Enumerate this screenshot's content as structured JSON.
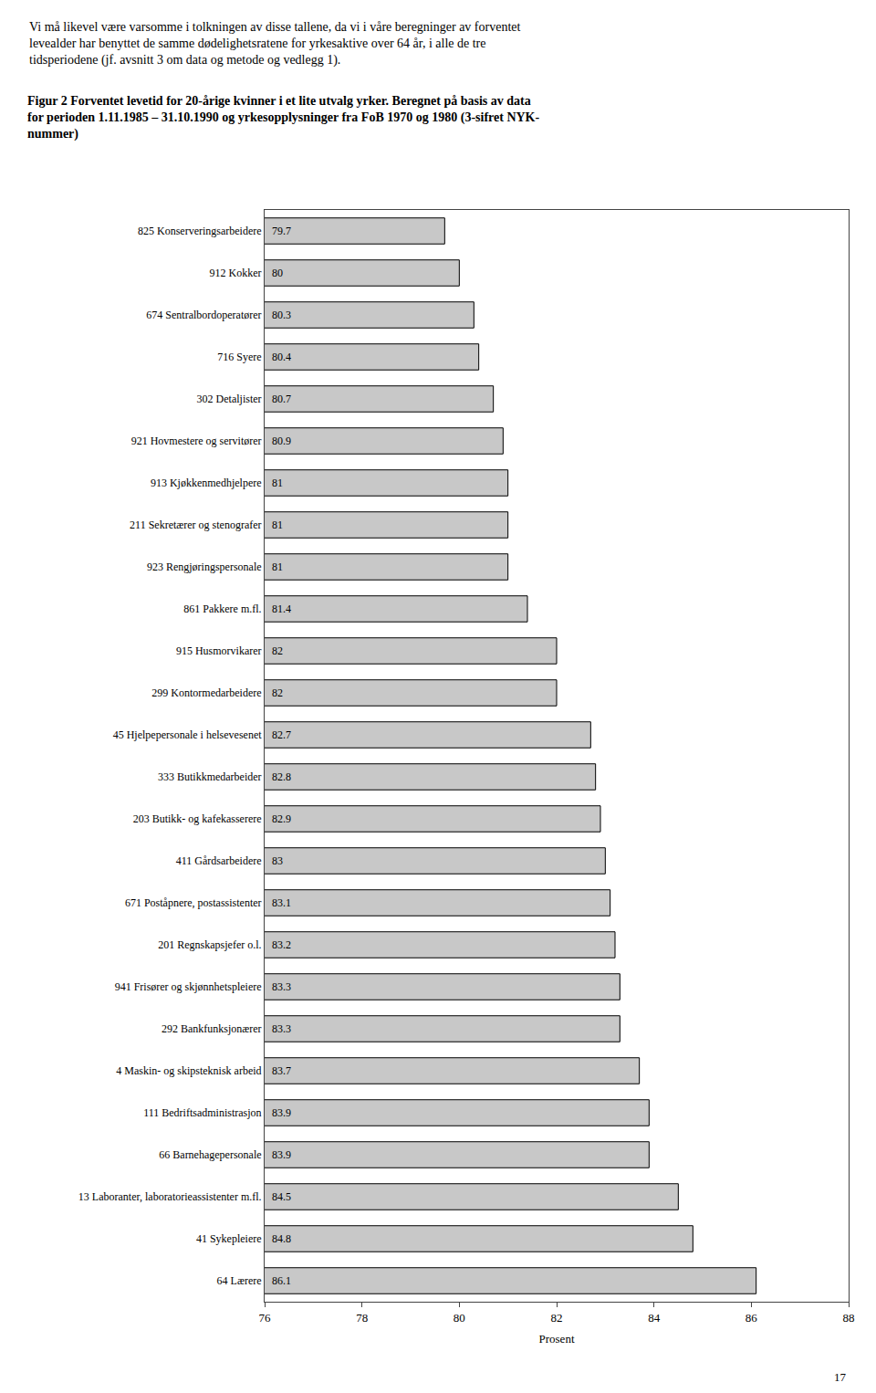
{
  "chart_data": {
    "type": "bar",
    "orientation": "horizontal",
    "title": "Figur 2 Forventet levetid for 20-årige kvinner i et lite utvalg yrker. Beregnet på basis av data\nfor perioden 1.11.1985 – 31.10.1990 og yrkesopplysninger fra FoB 1970 og 1980 (3-sifret NYK-\nnummer)",
    "annotations": [
      "Vi må likevel være varsomme i tolkningen av disse tallene, da vi i våre beregninger av forventet\nlevealder har benyttet de samme dødelighetsratene for yrkesaktive over 64 år, i alle de tre\ntidsperiodene (jf. avsnitt 3 om data og metode og vedlegg 1).",
      "17"
    ],
    "categories": [
      "825 Konserveringsarbeidere",
      "912 Kokker",
      "674 Sentralbordoperatører",
      "716 Syere",
      "302 Detaljister",
      "921 Hovmestere og servitører",
      "913 Kjøkkenmedhjelpere",
      "211 Sekretærer og stenografer",
      "923 Rengjøringspersonale",
      "861 Pakkere m.fl.",
      "915 Husmorvikarer",
      "299 Kontormedarbeidere",
      "45 Hjelpepersonale i helsevesenet",
      "333 Butikkmedarbeider",
      "203 Butikk- og kafekasserere",
      "411 Gårdsarbeidere",
      "671 Poståpnere, postassistenter",
      "201 Regnskapsjefer o.l.",
      "941 Frisører og skjønnhetspleiere",
      "292 Bankfunksjonærer",
      "4 Maskin- og skipsteknisk arbeid",
      "111 Bedriftsadministrasjon",
      "66 Barnehagepersonale",
      "13 Laboranter, laboratorieassistenter m.fl.",
      "41 Sykepleiere",
      "64 Lærere"
    ],
    "values": [
      79.7,
      80.0,
      80.3,
      80.4,
      80.7,
      80.9,
      81.0,
      81.0,
      81.0,
      81.4,
      82.0,
      82.0,
      82.7,
      82.8,
      82.9,
      83.0,
      83.1,
      83.2,
      83.3,
      83.3,
      83.7,
      83.9,
      83.9,
      84.5,
      84.8,
      86.1
    ],
    "value_labels": [
      "79.7",
      "80",
      "80.3",
      "80.4",
      "80.7",
      "80.9",
      "81",
      "81",
      "81",
      "81.4",
      "82",
      "82",
      "82.7",
      "82.8",
      "82.9",
      "83",
      "83.1",
      "83.2",
      "83.3",
      "83.3",
      "83.7",
      "83.9",
      "83.9",
      "84.5",
      "84.8",
      "86.1"
    ],
    "data_labels": true,
    "color": "#c8c8c8",
    "xlabel": "Prosent",
    "xlim": [
      76,
      88
    ],
    "xticks": [
      76,
      78,
      80,
      82,
      84,
      86,
      88
    ],
    "grid": false
  }
}
